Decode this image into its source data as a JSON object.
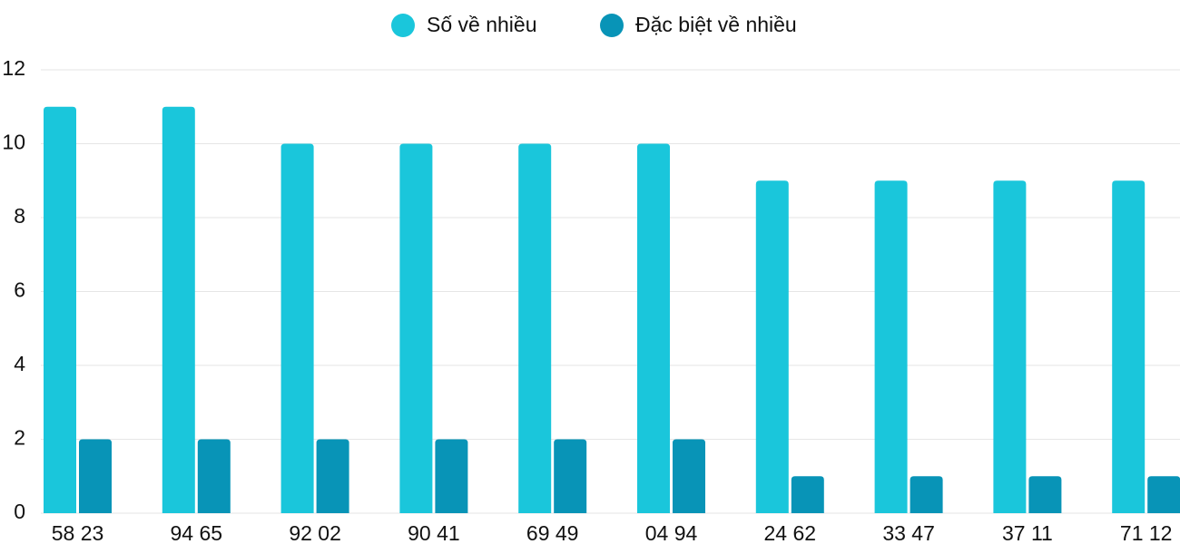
{
  "chart_data": {
    "type": "bar",
    "categories": [
      "58 23",
      "94 65",
      "92 02",
      "90 41",
      "69 49",
      "04 94",
      "24 62",
      "33 47",
      "37 11",
      "71 12"
    ],
    "series": [
      {
        "name": "Số về nhiều",
        "color": "#1ac6db",
        "values": [
          11,
          11,
          10,
          10,
          10,
          10,
          9,
          9,
          9,
          9
        ]
      },
      {
        "name": "Đặc biệt về nhiều",
        "color": "#0894b7",
        "values": [
          2,
          2,
          2,
          2,
          2,
          2,
          1,
          1,
          1,
          1
        ]
      }
    ],
    "ylim": [
      0,
      12
    ],
    "yticks": [
      0,
      2,
      4,
      6,
      8,
      10,
      12
    ],
    "grid": true,
    "legend": "top"
  }
}
